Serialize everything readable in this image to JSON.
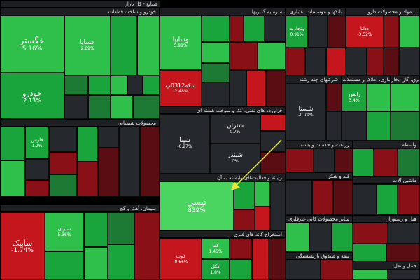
{
  "market_title": "صنایع - کل بازار",
  "sectors": {
    "khodro": "خودرو و ساخت قطعات",
    "sarmaye": "سرمایه گذاریها",
    "banks": "بانکها و موسسات اعتباری",
    "daroo": "مواد و محصولات دارو...",
    "chemical": "محصولات شیمیایی",
    "naft": "فراورده های نفتی، کک و سوخت هسته ای",
    "multi": "شرکتهای چند رشته",
    "amlak": "انبوه سازی، املاک و مستغلات",
    "barq": "عرضه برق، گاز، بخار",
    "rayaneh": "رایانه و فعالیت‌های وابسته به آن",
    "zeraat": "زراعت و خدمات وابسته",
    "vasete": "واسطه",
    "ghand": "قند و شکر",
    "machin": "ماشین آلات",
    "sement": "سیمان، آهک و گچ",
    "kani_felezi": "استخراج کانه های فلزی",
    "kani_gheyr": "سایر محصولات کانی غیرفلزی",
    "hotel": "هتل و رستوران",
    "bime": "بیمه و صندوق بازنشستگی",
    "hamlonaghl": "حمل و نقل"
  },
  "tiles": {
    "khegostar": {
      "name": "خگستر",
      "value": "5.16%"
    },
    "khodro": {
      "name": "خودرو",
      "value": "2.13%"
    },
    "khsapa": {
      "name": "خساپا",
      "value": "2.89%"
    },
    "vasaipa": {
      "name": "وسایپا",
      "value": "5.99%"
    },
    "sekke": {
      "name": "سکه0312پ",
      "value": "-2.48%"
    },
    "shasta": {
      "name": "شستا",
      "value": "-0.79%"
    },
    "shatran": {
      "name": "شتران",
      "value": "0.7%"
    },
    "shabandar": {
      "name": "شبندر",
      "value": "0%"
    },
    "shepna": {
      "name": "شپنا",
      "value": "-0.27%"
    },
    "tapsi": {
      "name": "تپسی",
      "value": "839%"
    },
    "saipa_azar": {
      "name": "سآبیک",
      "value": "-1.74%"
    },
    "dodal": {
      "name": "ددانا",
      "value": "-3.52%"
    },
    "dkosar": {
      "name": "وتجارت",
      "value": "0.91%"
    },
    "farabi": {
      "name": "فارس",
      "value": "1.2%"
    },
    "ranfor": {
      "name": "رانفور",
      "value": "3.4%"
    },
    "kama": {
      "name": "کما",
      "value": "1.46%"
    },
    "zob": {
      "name": "ذوب",
      "value": "-0.66%"
    },
    "sentaran": {
      "name": "ستران",
      "value": "5.36%"
    },
    "kgol": {
      "name": "کگل",
      "value": "1.8%"
    }
  }
}
